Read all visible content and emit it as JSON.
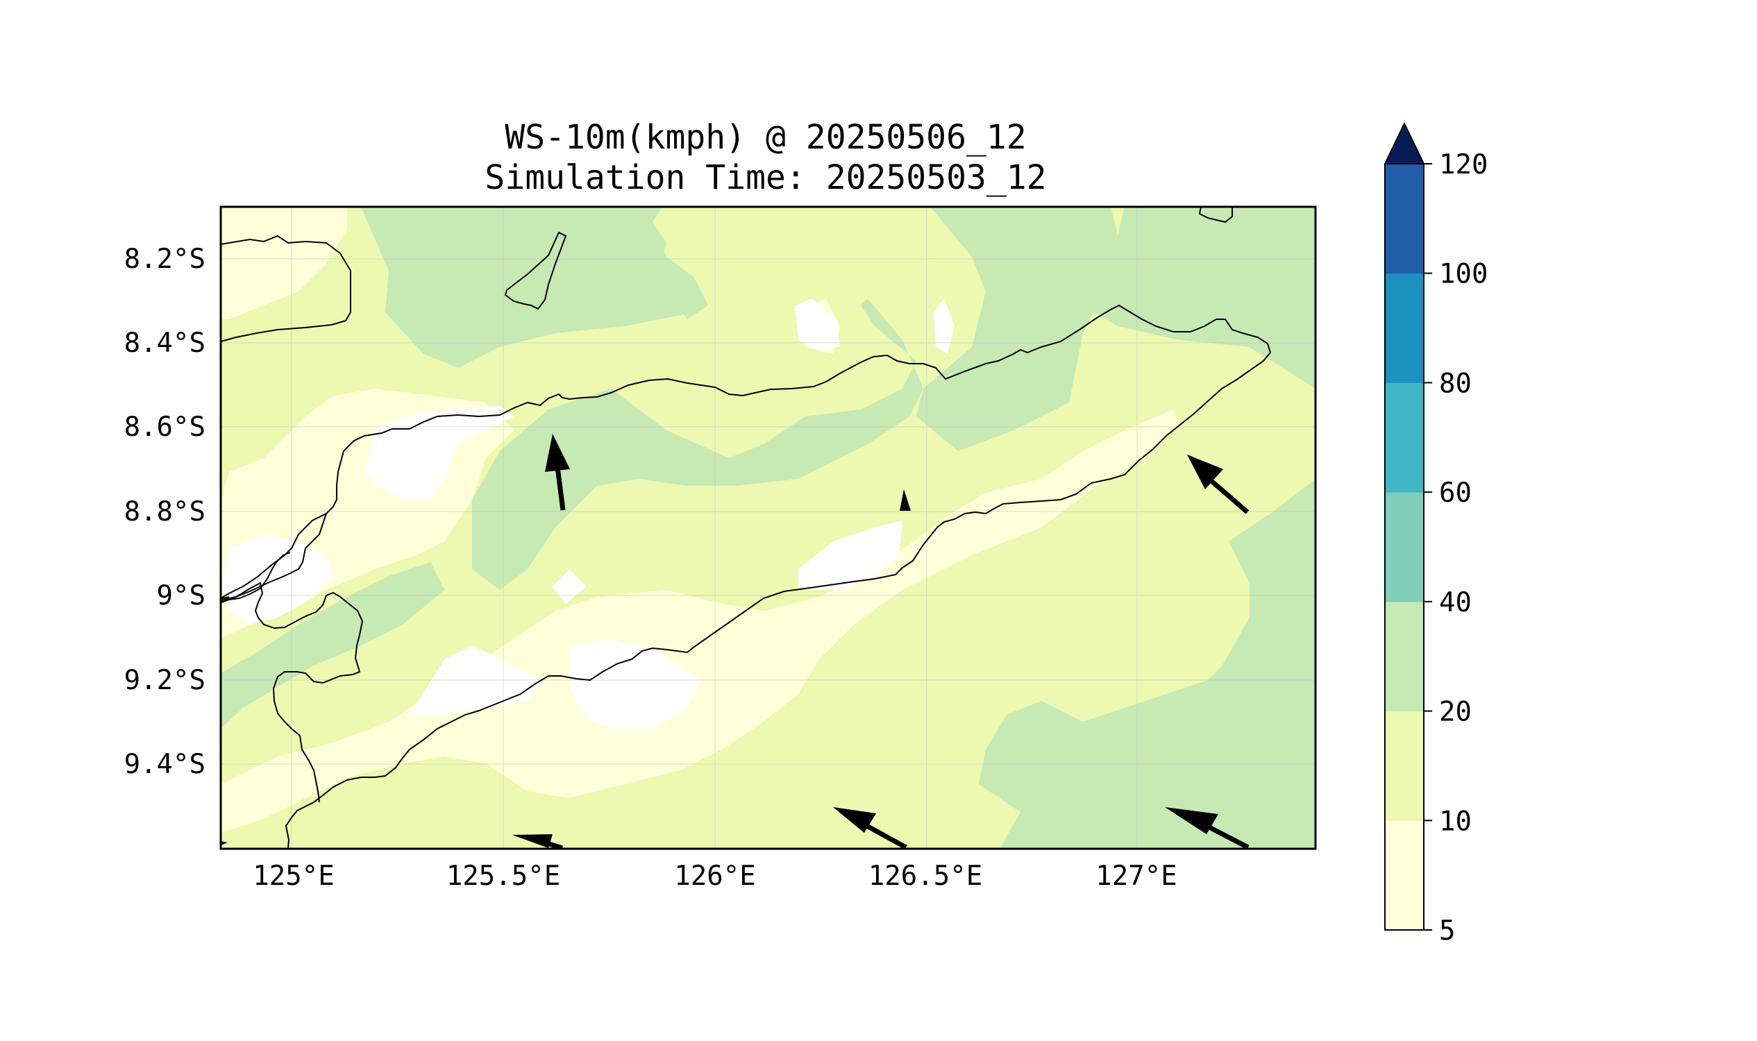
{
  "title": "WS-10m(kmph) @ 20250506_12",
  "subtitle": "Simulation Time: 20250503_12",
  "map": {
    "lon_range": [
      124.83,
      127.42
    ],
    "lat_range": [
      -9.59,
      -8.07
    ],
    "x_ticks": [
      "125°E",
      "125.5°E",
      "126°E",
      "126.5°E",
      "127°E"
    ],
    "x_tick_values": [
      125.0,
      125.5,
      126.0,
      126.5,
      127.0
    ],
    "y_ticks": [
      "8.2°S",
      "8.4°S",
      "8.6°S",
      "8.8°S",
      "9°S",
      "9.2°S",
      "9.4°S"
    ],
    "y_tick_values": [
      -8.2,
      -8.4,
      -8.6,
      -8.8,
      -9.0,
      -9.2,
      -9.4
    ],
    "grid": true,
    "wind_arrows_direction": "northwest"
  },
  "colorbar": {
    "levels": [
      "5",
      "10",
      "20",
      "40",
      "60",
      "80",
      "100",
      "120"
    ],
    "colors": [
      "#ffffd9",
      "#edf8b1",
      "#c7e9b4",
      "#7fcdbb",
      "#41b6c4",
      "#1d91c0",
      "#225ea8",
      "#0c2c84"
    ],
    "extend": "max",
    "extend_color": "#081d58"
  },
  "chart_data": {
    "type": "heatmap",
    "title": "WS-10m(kmph) @ 20250506_12\nSimulation Time: 20250503_12",
    "variable": "WS-10m(kmph)",
    "colorbar_levels": [
      5,
      10,
      20,
      40,
      60,
      80,
      100,
      120
    ],
    "x_ticks": [
      "125°E",
      "125.5°E",
      "126°E",
      "126.5°E",
      "127°E"
    ],
    "y_ticks": [
      "8.2°S",
      "8.4°S",
      "8.6°S",
      "8.8°S",
      "9°S",
      "9.2°S",
      "9.4°S"
    ],
    "xlim": [
      124.83,
      127.42
    ],
    "ylim": [
      -9.59,
      -8.07
    ],
    "grid": true
  }
}
